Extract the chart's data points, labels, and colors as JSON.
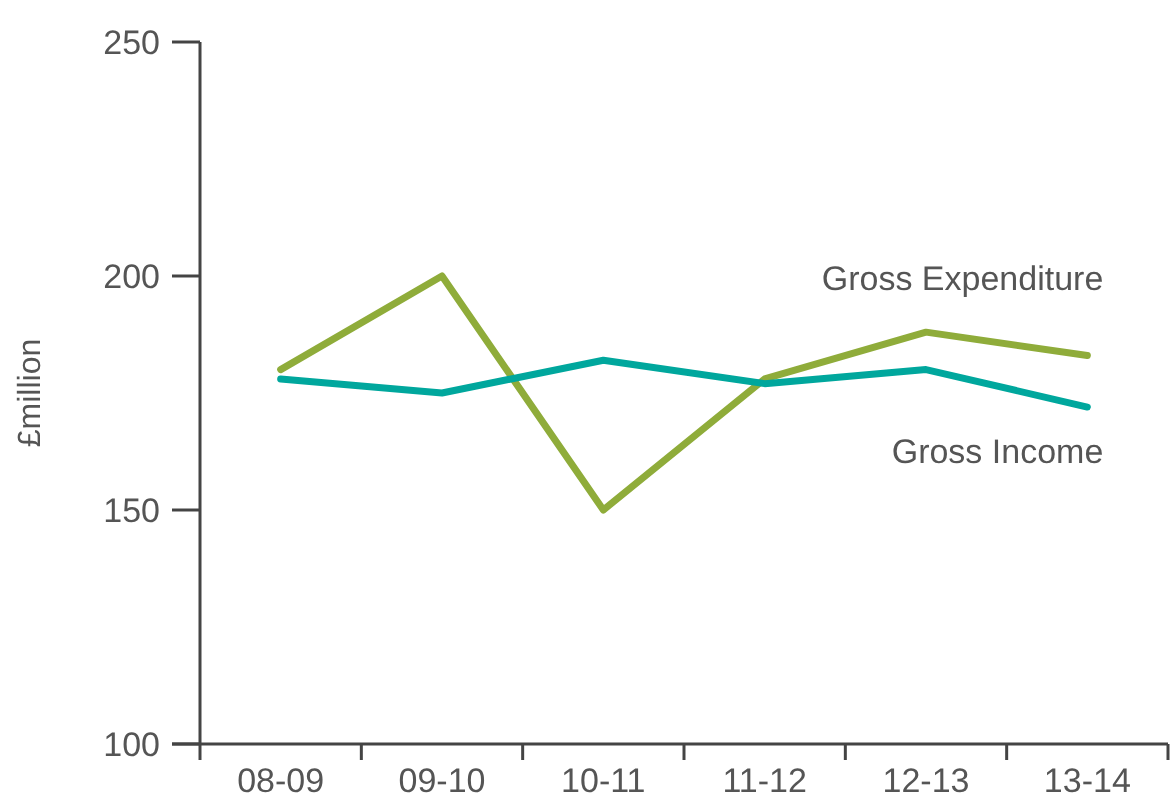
{
  "chart_data": {
    "type": "line",
    "ylabel": "£million",
    "categories": [
      "08-09",
      "09-10",
      "10-11",
      "11-12",
      "12-13",
      "13-14"
    ],
    "ylim": [
      100,
      250
    ],
    "yticks": [
      100,
      150,
      200,
      250
    ],
    "grid": false,
    "marker": "none",
    "line_style": "solid",
    "series": [
      {
        "name": "Gross Expenditure",
        "color": "#8fac3a",
        "values": [
          180,
          200,
          150,
          178,
          188,
          183
        ]
      },
      {
        "name": "Gross Income",
        "color": "#00a79d",
        "values": [
          178,
          175,
          182,
          177,
          180,
          172
        ]
      }
    ]
  }
}
